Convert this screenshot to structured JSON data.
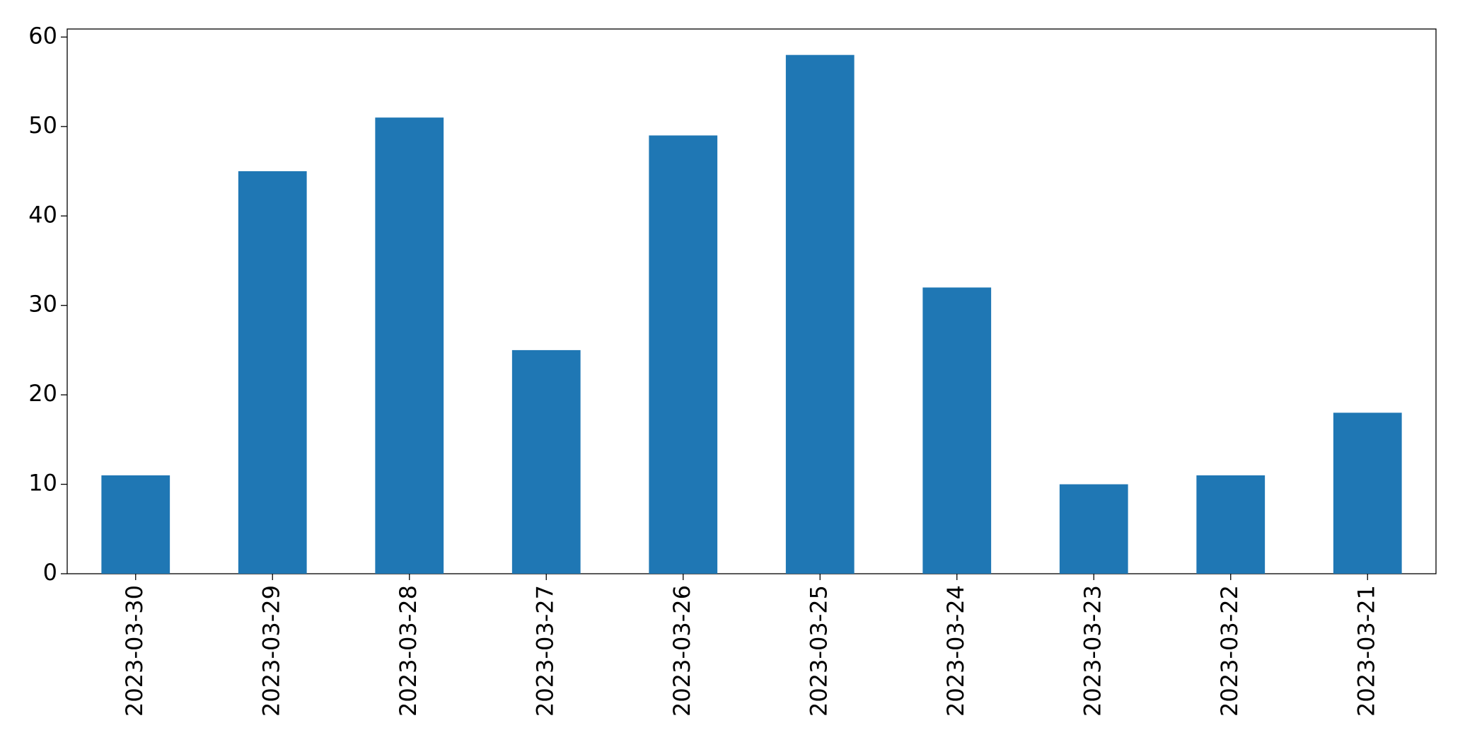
{
  "chart_data": {
    "type": "bar",
    "categories": [
      "2023-03-30",
      "2023-03-29",
      "2023-03-28",
      "2023-03-27",
      "2023-03-26",
      "2023-03-25",
      "2023-03-24",
      "2023-03-23",
      "2023-03-22",
      "2023-03-21"
    ],
    "values": [
      11,
      45,
      51,
      25,
      49,
      58,
      32,
      10,
      11,
      18
    ],
    "color": "#1f77b4",
    "ylim": [
      0,
      60.9
    ],
    "yticks": [
      0,
      10,
      20,
      30,
      40,
      50,
      60
    ],
    "grid": false
  }
}
